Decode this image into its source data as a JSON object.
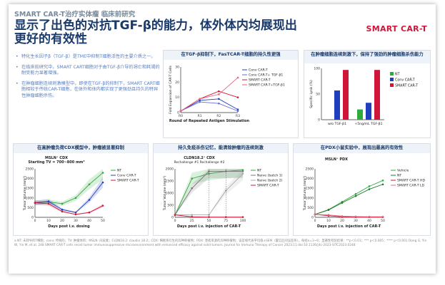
{
  "kicker": "SMART CAR-T治疗实体瘤 临床前研究",
  "title": "显示了出色的对抗TGF-β的能力，体外体内均展现出更好的有效性",
  "brand": "SMART CAR-T",
  "bullets": [
    "特化生长因子β（TGF-β）是TME中抑制T细胞活性的主要介质之一。",
    "在临床前研究中，SMART CART细胞对于由TGF-β介导的凋亡和耗竭的耐受能力显著增强。",
    "在肿瘤细胞连续刺激模型中，即使在TGF-β的抑制下，SMART CART细胞相较于传统CAR-T细胞，在体外和体内都实现了更强劲且持久的特异性肿瘤细胞杀伤。"
  ],
  "panels": {
    "p1": {
      "title": "在TGF-β抑制下，FasTCAR-T细胞的持久性更强"
    },
    "p2": {
      "title": "在肿瘤细胞连续刺激下，保持了强劲的肿瘤细胞杀伤能力"
    },
    "p3": {
      "title": "在高肿瘤负荷CDX模型中，肿瘤被显著抑制",
      "sub1": "MSLN⁺ CDX",
      "sub2": "Starting TV = 700~800 mm³"
    },
    "p4": {
      "title": "持久免疫杀伤记忆，能清除肿瘤的连续刺激",
      "sub1": "CLDN18.2⁺ CDX",
      "sub2": "Rechallenge #1  Rechallenge #2"
    },
    "p5": {
      "title": "在PDX小鼠实验中，展现出最高的有效性",
      "sub1": "MSLN⁺ PDX"
    }
  },
  "footnote": "a NT: 未转导的T细胞；conv: 传统的；TV: 肿瘤体积；MSLN: 间皮素；CLDN18.2: claudin 18.2；CDX: 细胞系衍生的异种移植物；PDX: 患者来源的异种移植物；误差线代表平均值±SEM（置信区间误差条），每组n=3~6；显著性检验结果：**p＜0.01；*** p＜0.005；**** p＜0.001\nDong G, Yin W, Yin M, et al. 248 SMART CAR-T cells resist tumor immunosuppressive microenvironment with enhanced efficacy against solid tumors. Journal for Immuno Therapy of Cancer 2023;11:doi:10.1136/jitc-2023-SITC2023.0248",
  "chart_data": [
    {
      "type": "line",
      "title": "在TGF-β抑制下，FasTCAR-T细胞的持久性更强",
      "xlabel": "Round of Repeated Antigen Stimulation",
      "ylabel": "Fold Expansion of CAR-T Cells",
      "categories": [
        "R0",
        "R1",
        "R2",
        "R3"
      ],
      "ylim": [
        0,
        30
      ],
      "series": [
        {
          "name": "Conv CAR-T",
          "color": "#1f3fbf",
          "values": [
            1,
            8,
            9,
            2
          ]
        },
        {
          "name": "Conv CAR-T+ TGF-β1",
          "color": "#6a6ad8",
          "values": [
            1,
            7,
            6,
            1
          ]
        },
        {
          "name": "SMART CAR-T",
          "color": "#d0153a",
          "values": [
            1,
            9,
            14,
            10
          ]
        },
        {
          "name": "SMART CAR-T+TGF-β1",
          "color": "#e8647a",
          "values": [
            1,
            9,
            12,
            23
          ]
        }
      ]
    },
    {
      "type": "bar",
      "title": "在肿瘤细胞连续刺激下，保持了强劲的肿瘤细胞杀伤能力",
      "ylabel": "Specific Lysis (%)",
      "categories": [
        "w/o TGF-β1",
        "+5ng/mL TGF-β1"
      ],
      "ylim": [
        0,
        100
      ],
      "series": [
        {
          "name": "NT",
          "color": "#2faa3c",
          "values": [
            0,
            20
          ]
        },
        {
          "name": "Conv CAR-T",
          "color": "#1f3fbf",
          "values": [
            57,
            33
          ]
        },
        {
          "name": "SMART CAR-T",
          "color": "#d0153a",
          "values": [
            97,
            97
          ]
        }
      ]
    },
    {
      "type": "line",
      "title": "在高肿瘤负荷CDX模型中，肿瘤被显著抑制",
      "xlabel": "Days post i.v. dosing",
      "ylabel": "Tumor Volume (mm³)",
      "x": [
        0,
        10,
        20,
        30,
        40,
        50
      ],
      "ylim": [
        0,
        2500
      ],
      "series": [
        {
          "name": "NT",
          "color": "#2faa3c",
          "values": [
            750,
            800,
            700,
            1000,
            1700,
            2300
          ]
        },
        {
          "name": "Conv CAR-T",
          "color": "#1f3fbf",
          "values": [
            750,
            820,
            400,
            250,
            900,
            1800
          ]
        },
        {
          "name": "SMART CAR-T",
          "color": "#d0153a",
          "values": [
            750,
            700,
            300,
            150,
            250,
            600
          ]
        }
      ]
    },
    {
      "type": "line",
      "title": "持久免疫杀伤记忆，能清除肿瘤的连续刺激",
      "xlabel": "Days post i.v. injection of CAR-T",
      "ylabel": "Tumor Volume (mm³)",
      "x": [
        0,
        25,
        50,
        75,
        100
      ],
      "ylim": [
        0,
        2000
      ],
      "series": [
        {
          "name": "NT",
          "color": "#2faa3c",
          "values": [
            100,
            1600,
            1800,
            1900,
            1950
          ]
        },
        {
          "name": "Naive (batch 1)",
          "color": "#777777",
          "values": [
            100,
            1200,
            1900,
            1900,
            1900
          ]
        },
        {
          "name": "Naive (batch 2)",
          "color": "#aaaaaa",
          "values": [
            100,
            100,
            100,
            1100,
            1800
          ]
        },
        {
          "name": "SMART CAR-T",
          "color": "#d0153a",
          "values": [
            100,
            20,
            10,
            10,
            10
          ]
        }
      ]
    },
    {
      "type": "line",
      "title": "在PDX小鼠实验中，展现出最高的有效性",
      "xlabel": "Days post i.v. injection of CAR-T",
      "ylabel": "Tumor Volume (mm³)",
      "x": [
        0,
        10,
        20,
        30,
        40,
        50
      ],
      "ylim": [
        0,
        2500
      ],
      "series": [
        {
          "name": "Vehicle",
          "color": "#2faa3c",
          "values": [
            150,
            400,
            800,
            1200,
            1600,
            1900
          ]
        },
        {
          "name": "NT",
          "color": "#1a7a2c",
          "values": [
            150,
            380,
            750,
            1100,
            1450,
            1700
          ]
        },
        {
          "name": "SMART CAR-T HD",
          "color": "#d0153a",
          "values": [
            150,
            80,
            20,
            10,
            10,
            10
          ]
        },
        {
          "name": "SMART CAR-T LD",
          "color": "#e8647a",
          "values": [
            150,
            120,
            60,
            40,
            30,
            30
          ]
        }
      ]
    }
  ]
}
